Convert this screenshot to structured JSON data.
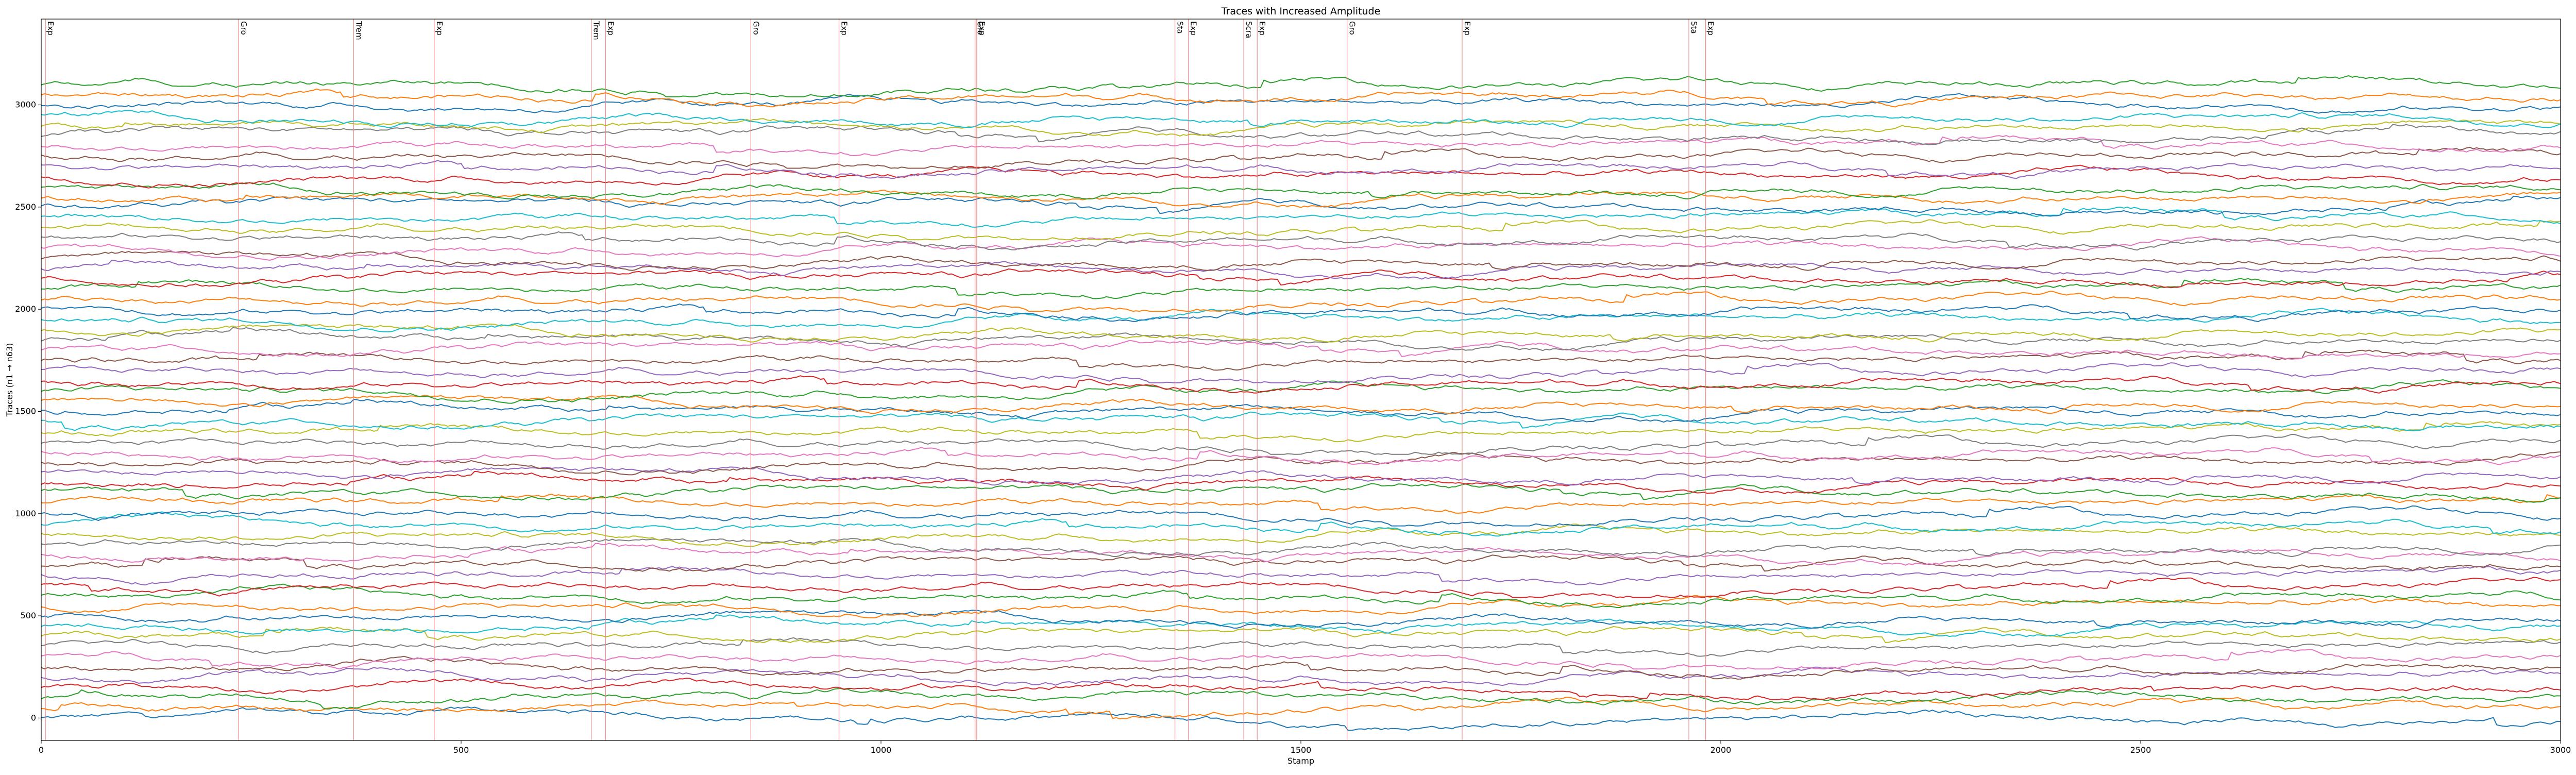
{
  "chart_data": {
    "type": "line",
    "title": "Traces with Increased Amplitude",
    "xlabel": "Stamp",
    "ylabel": "Traces (n1 → n63)",
    "xlim": [
      0,
      3000
    ],
    "ylim": [
      -110,
      3420
    ],
    "x_ticks": [
      0,
      500,
      1000,
      1500,
      2000,
      2500,
      3000
    ],
    "y_ticks": [
      0,
      500,
      1000,
      1500,
      2000,
      2500,
      3000
    ],
    "grid": false,
    "legend": "none",
    "n_traces": 63,
    "trace_spacing": 50,
    "trace_baseline_start": 0,
    "trace_amplitude": 60,
    "colors": [
      "#1f77b4",
      "#ff7f0e",
      "#2ca02c",
      "#d62728",
      "#9467bd",
      "#8c564b",
      "#e377c2",
      "#7f7f7f",
      "#bcbd22",
      "#17becf"
    ],
    "event_color": "#f08080",
    "events": [
      {
        "x": 5,
        "label": "Exp"
      },
      {
        "x": 235,
        "label": "Gro"
      },
      {
        "x": 372,
        "label": "Trem"
      },
      {
        "x": 468,
        "label": "Exp"
      },
      {
        "x": 655,
        "label": "Trem"
      },
      {
        "x": 672,
        "label": "Exp"
      },
      {
        "x": 845,
        "label": "Gro"
      },
      {
        "x": 950,
        "label": "Exp"
      },
      {
        "x": 1112,
        "label": "Gro"
      },
      {
        "x": 1114,
        "label": "Exp"
      },
      {
        "x": 1350,
        "label": "Sta"
      },
      {
        "x": 1366,
        "label": "Exp"
      },
      {
        "x": 1432,
        "label": "Scra"
      },
      {
        "x": 1448,
        "label": "Exp"
      },
      {
        "x": 1555,
        "label": "Gro"
      },
      {
        "x": 1692,
        "label": "Exp"
      },
      {
        "x": 1962,
        "label": "Sta"
      },
      {
        "x": 1982,
        "label": "Exp"
      }
    ]
  }
}
